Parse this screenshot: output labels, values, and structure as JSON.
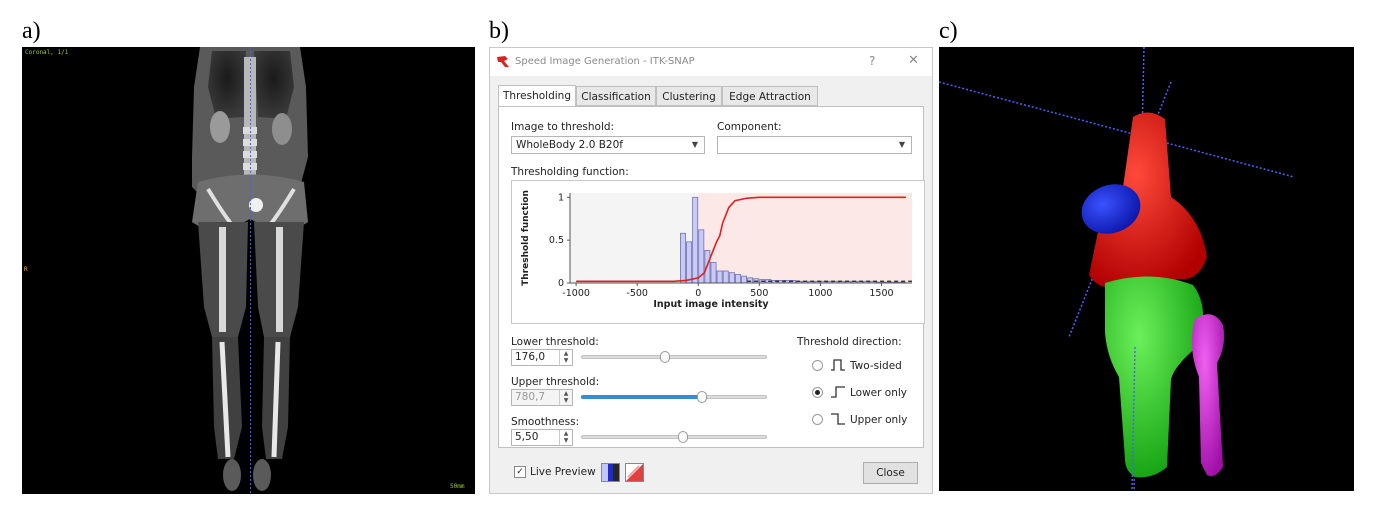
{
  "panel_letters": {
    "a": "a)",
    "b": "b)",
    "c": "c)"
  },
  "ct_view": {
    "top_left_label": "Coronal, 1/1",
    "left_edge_label": "R",
    "bottom_right_label": "50mm"
  },
  "dialog": {
    "title": "Speed Image Generation - ITK-SNAP",
    "help_glyph": "?",
    "close_glyph": "✕",
    "tabs": [
      {
        "label": "Thresholding",
        "active": true
      },
      {
        "label": "Classification",
        "active": false
      },
      {
        "label": "Clustering",
        "active": false
      },
      {
        "label": "Edge Attraction",
        "active": false
      }
    ],
    "image_to_threshold": {
      "label": "Image to threshold:",
      "value": "WholeBody  2.0  B20f"
    },
    "component": {
      "label": "Component:",
      "value": ""
    },
    "thresholding_function_label": "Thresholding function:",
    "lower_threshold": {
      "label": "Lower threshold:",
      "value": "176,0",
      "slider_fraction": 0.45
    },
    "upper_threshold": {
      "label": "Upper threshold:",
      "value": "780,7",
      "slider_fraction": 0.65
    },
    "smoothness": {
      "label": "Smoothness:",
      "value": "5,50",
      "slider_fraction": 0.55
    },
    "threshold_direction": {
      "label": "Threshold direction:",
      "options": [
        {
          "label": "Two-sided",
          "selected": false
        },
        {
          "label": "Lower only",
          "selected": true
        },
        {
          "label": "Upper only",
          "selected": false
        }
      ]
    },
    "live_preview": {
      "label": "Live Preview",
      "checked": true,
      "check_glyph": "✓"
    },
    "close_button": "Close",
    "colors": {
      "accent": "#3a8ad6",
      "curve": "#e0201e",
      "histogram_fill": "#c9cbf2",
      "histogram_stroke": "#6e6fb8"
    }
  },
  "chart_data": {
    "type": "bar",
    "xlabel": "Input image intensity",
    "ylabel": "Threshold function",
    "xlim": [
      -1050,
      1750
    ],
    "ylim": [
      0,
      1.05
    ],
    "x_ticks": [
      "-1000",
      "-500",
      "0",
      "500",
      "1000",
      "1500"
    ],
    "x_tick_values": [
      -1000,
      -500,
      0,
      500,
      1000,
      1500
    ],
    "y_ticks": [
      "0",
      "0.5",
      "1"
    ],
    "y_tick_values": [
      0,
      0.5,
      1
    ],
    "histogram": {
      "bin_width": 50,
      "bin_start": [
        -150,
        -100,
        -50,
        0,
        50,
        100,
        150,
        200,
        250,
        300,
        350,
        400,
        450,
        500,
        550,
        600,
        650,
        700,
        750,
        800,
        850,
        900,
        950,
        1000,
        1050,
        1100,
        1150,
        1200,
        1250,
        1300,
        1350,
        1400,
        1450,
        1500,
        1550,
        1600,
        1650
      ],
      "values": [
        0.58,
        0.48,
        1.0,
        0.62,
        0.38,
        0.24,
        0.14,
        0.14,
        0.12,
        0.1,
        0.08,
        0.06,
        0.05,
        0.04,
        0.04,
        0.03,
        0.03,
        0.03,
        0.03,
        0.02,
        0.02,
        0.02,
        0.02,
        0.02,
        0.02,
        0.02,
        0.02,
        0.02,
        0.02,
        0.02,
        0.02,
        0.02,
        0.01,
        0.01,
        0.01,
        0.01,
        0.01
      ]
    },
    "curve": {
      "name": "",
      "x": [
        -1000,
        -500,
        -200,
        -100,
        0,
        50,
        100,
        150,
        176,
        200,
        250,
        300,
        400,
        500,
        800,
        1000,
        1500,
        1700
      ],
      "y": [
        0.02,
        0.02,
        0.02,
        0.03,
        0.06,
        0.12,
        0.3,
        0.48,
        0.55,
        0.7,
        0.88,
        0.96,
        0.99,
        1.0,
        1.0,
        1.0,
        1.0,
        1.0
      ]
    }
  },
  "render3d": {
    "colors": {
      "femur": "#e01010",
      "patella": "#1428e6",
      "tibia": "#23d023",
      "fibula": "#d21ed2",
      "axis": "#4f5fff"
    }
  }
}
